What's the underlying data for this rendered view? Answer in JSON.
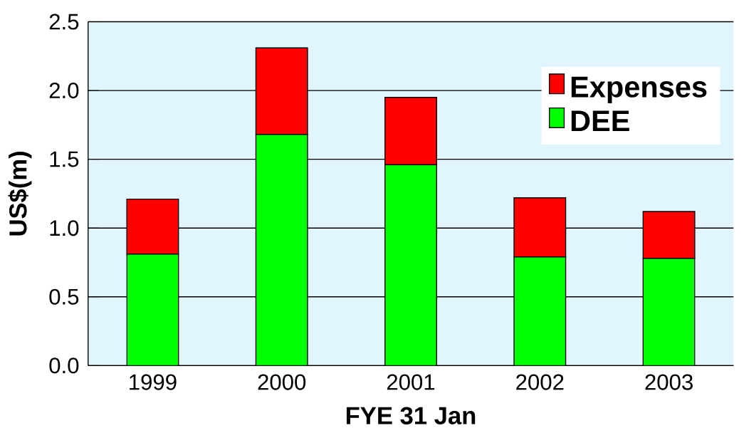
{
  "chart_data": {
    "type": "bar",
    "stacked": true,
    "xlabel": "FYE 31 Jan",
    "ylabel": "US$(m)",
    "categories": [
      "1999",
      "2000",
      "2001",
      "2002",
      "2003"
    ],
    "series": [
      {
        "name": "DEE",
        "color": "#00ff00",
        "values": [
          0.81,
          1.68,
          1.46,
          0.79,
          0.78
        ]
      },
      {
        "name": "Expenses",
        "color": "#ff0000",
        "values": [
          0.4,
          0.63,
          0.49,
          0.43,
          0.34
        ]
      }
    ],
    "ylim": [
      0,
      2.5
    ],
    "yticks": [
      {
        "value": 0,
        "label": "0.0"
      },
      {
        "value": 0.5,
        "label": "0.5"
      },
      {
        "value": 1,
        "label": "1.0"
      },
      {
        "value": 1.5,
        "label": "1.5"
      },
      {
        "value": 2,
        "label": "2.0"
      },
      {
        "value": 2.5,
        "label": "2.5"
      }
    ],
    "grid": "y",
    "legend": "top right"
  }
}
